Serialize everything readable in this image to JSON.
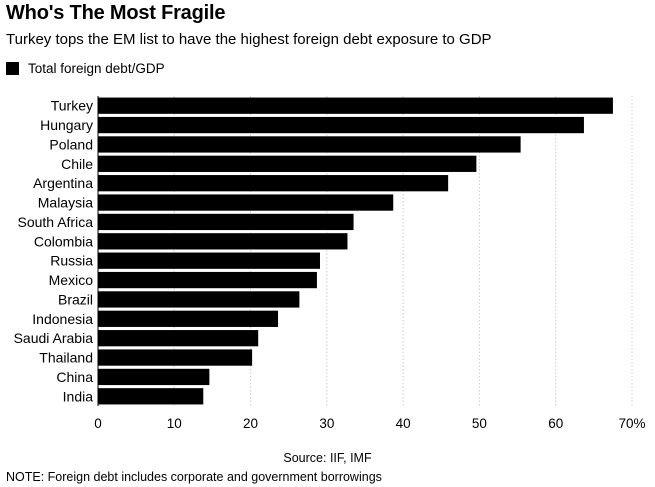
{
  "chart_data": {
    "type": "bar",
    "orientation": "horizontal",
    "title": "Who's The Most Fragile",
    "subtitle": "Turkey tops the EM list to have the highest foreign debt exposure to GDP",
    "legend": {
      "label": "Total foreign debt/GDP",
      "placement": "top-left"
    },
    "categories": [
      "Turkey",
      "Hungary",
      "Poland",
      "Chile",
      "Argentina",
      "Malaysia",
      "South Africa",
      "Colombia",
      "Russia",
      "Mexico",
      "Brazil",
      "Indonesia",
      "Saudi Arabia",
      "Thailand",
      "China",
      "India"
    ],
    "values": [
      67.5,
      63.7,
      55.4,
      49.6,
      45.9,
      38.7,
      33.5,
      32.7,
      29.1,
      28.7,
      26.4,
      23.6,
      21.0,
      20.2,
      14.6,
      13.8
    ],
    "xlim": [
      0,
      70
    ],
    "xticks": [
      0,
      10,
      20,
      30,
      40,
      50,
      60,
      70
    ],
    "xtick_labels": [
      "0",
      "10",
      "20",
      "30",
      "40",
      "50",
      "60",
      "70%"
    ],
    "grid": "vertical",
    "bar_color": "#000000",
    "source": "Source: IIF, IMF",
    "note": "NOTE: Foreign debt includes corporate and government borrowings"
  }
}
